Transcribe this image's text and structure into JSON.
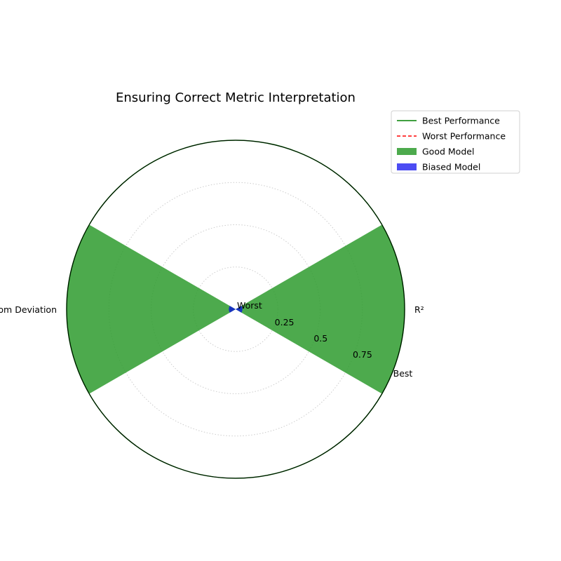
{
  "chart_data": {
    "type": "radar",
    "title": "Ensuring Correct Metric Interpretation",
    "categories": [
      "R²",
      "Custom Deviation"
    ],
    "category_angles_deg": [
      0,
      180
    ],
    "rlim": [
      0,
      1
    ],
    "radial_ticks": [
      {
        "value": 0,
        "label": "Worst"
      },
      {
        "value": 0.25,
        "label": "0.25"
      },
      {
        "value": 0.5,
        "label": "0.5"
      },
      {
        "value": 0.75,
        "label": "0.75"
      },
      {
        "value": 1,
        "label": "Best"
      }
    ],
    "grid": true,
    "series": [
      {
        "name": "Best Performance",
        "kind": "line",
        "style": "solid",
        "color": "#008000",
        "values": [
          1,
          1
        ]
      },
      {
        "name": "Worst Performance",
        "kind": "line",
        "style": "dashed",
        "color": "#ff0000",
        "values": [
          0,
          0
        ]
      },
      {
        "name": "Good Model",
        "kind": "bar",
        "color": "#2e9b2e",
        "alpha": 0.85,
        "values": [
          1,
          1
        ],
        "width_deg": 60
      },
      {
        "name": "Biased Model",
        "kind": "bar",
        "color": "#0000ee",
        "alpha": 0.7,
        "values": [
          0.04,
          0.04
        ],
        "width_deg": 60
      }
    ],
    "legend": {
      "placement": "top-right"
    }
  }
}
